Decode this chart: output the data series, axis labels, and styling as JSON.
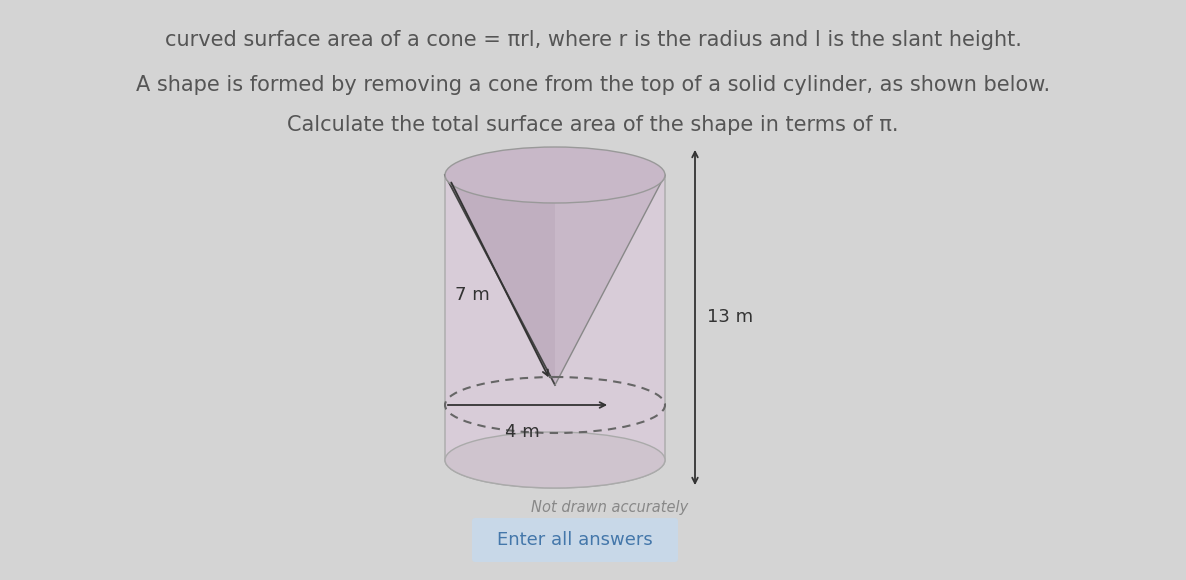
{
  "bg_color": "#d4d4d4",
  "title_line1_parts": [
    {
      "text": "curved surface area of a cone = ",
      "style": "normal"
    },
    {
      "text": "πrl",
      "style": "italic"
    },
    {
      "text": ", where ",
      "style": "normal"
    },
    {
      "text": "r",
      "style": "italic"
    },
    {
      "text": " is the radius and ",
      "style": "normal"
    },
    {
      "text": "l",
      "style": "italic"
    },
    {
      "text": " is the slant height.",
      "style": "normal"
    }
  ],
  "title_line1_full": "curved surface area of a cone = πrl, where r is the radius and l is the slant height.",
  "title_line2": "A shape is formed by removing a cone from the top of a solid cylinder, as shown below.",
  "title_line3": "Calculate the total surface area of the shape in terms of π.",
  "label_slant": "7 m",
  "label_height": "13 m",
  "label_radius": "4 m",
  "note": "Not drawn accurately",
  "button_text": "Enter all answers",
  "button_color": "#c8d8e8",
  "button_text_color": "#4477aa",
  "cyl_side_color": "#d8ccd8",
  "cyl_top_color": "#c8b8c8",
  "cyl_bottom_color": "#cfc4ce",
  "cone_left_color": "#c0afc0",
  "cone_right_color": "#c8b8c8",
  "text_color": "#555555",
  "arrow_color": "#333333",
  "figsize": [
    11.86,
    5.8
  ],
  "dpi": 100
}
